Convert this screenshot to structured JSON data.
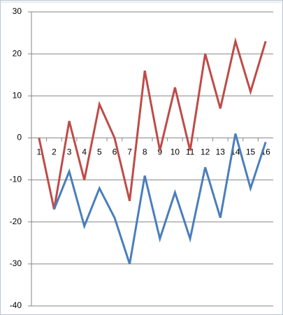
{
  "chart_data": {
    "type": "line",
    "categories": [
      "1",
      "2",
      "3",
      "4",
      "5",
      "6",
      "7",
      "8",
      "9",
      "10",
      "11",
      "12",
      "13",
      "14",
      "15",
      "16"
    ],
    "series": [
      {
        "color": "#be4b48",
        "values": [
          0,
          -17,
          4,
          -10,
          8,
          0,
          -15,
          16,
          -3,
          12,
          -3,
          20,
          7,
          23,
          11,
          23
        ]
      },
      {
        "color": "#4a7ebb",
        "values": [
          null,
          -17,
          -8,
          -21,
          -12,
          -19,
          -30,
          -9,
          -24,
          -13,
          -24,
          -7,
          -19,
          1,
          -12,
          -1
        ]
      }
    ],
    "ylim": [
      -40,
      30
    ],
    "yticks": [
      -40,
      -30,
      -20,
      -10,
      0,
      10,
      20,
      30
    ],
    "grid": true
  }
}
